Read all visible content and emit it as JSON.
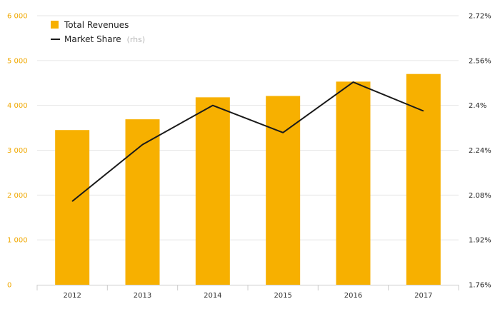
{
  "chart_data": {
    "type": "bar",
    "categories": [
      "2012",
      "2013",
      "2014",
      "2015",
      "2016",
      "2017"
    ],
    "series": [
      {
        "name": "Total Revenues",
        "type": "bar",
        "axis": "left",
        "values": [
          3450,
          3690,
          4180,
          4210,
          4530,
          4700
        ],
        "color": "#f7b000"
      },
      {
        "name": "Market Share",
        "type": "line",
        "axis": "right",
        "values": [
          2.058,
          2.26,
          2.4,
          2.303,
          2.483,
          2.38
        ],
        "color": "#1a1a1a"
      }
    ],
    "left_axis": {
      "ylim": [
        0,
        6000
      ],
      "ticks": [
        0,
        1000,
        2000,
        3000,
        4000,
        5000,
        6000
      ],
      "tick_labels": [
        "0",
        "1 000",
        "2 000",
        "3 000",
        "4 000",
        "5 000",
        "6 000"
      ],
      "color": "#f0a800"
    },
    "right_axis": {
      "ylim": [
        1.76,
        2.72
      ],
      "ticks": [
        1.76,
        1.92,
        2.08,
        2.24,
        2.4,
        2.56,
        2.72
      ],
      "tick_labels": [
        "1.76%",
        "1.92%",
        "2.08%",
        "2.24%",
        "2.4%",
        "2.56%",
        "2.72%"
      ]
    },
    "legend": {
      "position": "top-left",
      "items": [
        {
          "label": "Total Revenues",
          "note": ""
        },
        {
          "label": "Market Share",
          "note": "(rhs)"
        }
      ]
    },
    "grid": true,
    "title": "",
    "xlabel": "",
    "ylabel": ""
  }
}
